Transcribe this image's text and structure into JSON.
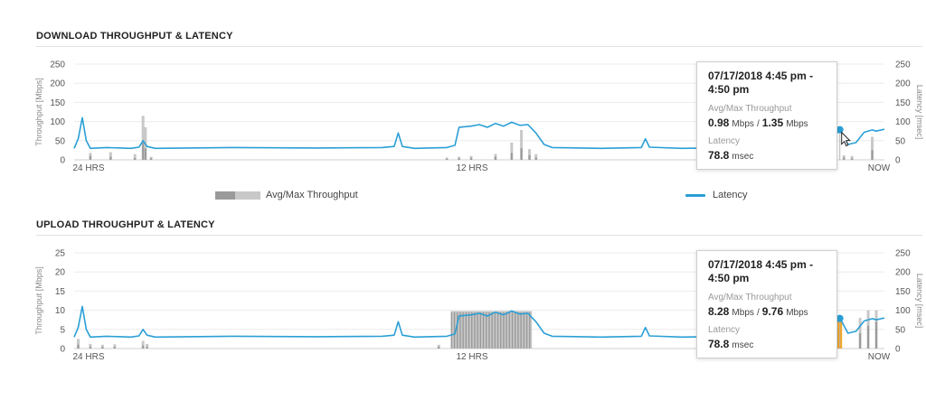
{
  "chart_data": [
    {
      "type": "bar",
      "title": "DOWNLOAD THROUGHPUT & LATENCY",
      "ylabel_left": "Throughput [Mbps]",
      "ylabel_right": "Latency [msec]",
      "ylim_left": [
        0,
        250
      ],
      "ylim_right": [
        0,
        250
      ],
      "yticks_left": [
        "250",
        "200",
        "150",
        "100",
        "50",
        "0"
      ],
      "yticks_right": [
        "250",
        "200",
        "150",
        "100",
        "50",
        "0"
      ],
      "xticks": [
        "24 HRS",
        "12 HRS",
        "NOW"
      ],
      "grid": true,
      "legend": [
        "Avg/Max Throughput",
        "Latency"
      ],
      "throughput_bars": [
        {
          "x": 0.02,
          "avg": 10,
          "max": 18
        },
        {
          "x": 0.045,
          "avg": 8,
          "max": 20
        },
        {
          "x": 0.075,
          "avg": 5,
          "max": 15
        },
        {
          "x": 0.085,
          "avg": 45,
          "max": 115
        },
        {
          "x": 0.088,
          "avg": 30,
          "max": 85
        },
        {
          "x": 0.095,
          "avg": 4,
          "max": 8
        },
        {
          "x": 0.46,
          "avg": 3,
          "max": 6
        },
        {
          "x": 0.475,
          "avg": 4,
          "max": 8
        },
        {
          "x": 0.49,
          "avg": 5,
          "max": 10
        },
        {
          "x": 0.52,
          "avg": 8,
          "max": 15
        },
        {
          "x": 0.54,
          "avg": 18,
          "max": 45
        },
        {
          "x": 0.552,
          "avg": 30,
          "max": 78
        },
        {
          "x": 0.562,
          "avg": 12,
          "max": 28
        },
        {
          "x": 0.57,
          "avg": 6,
          "max": 15
        },
        {
          "x": 0.935,
          "avg": 4,
          "max": 8
        },
        {
          "x": 0.95,
          "avg": 6,
          "max": 12
        },
        {
          "x": 0.96,
          "avg": 4,
          "max": 10
        },
        {
          "x": 0.985,
          "avg": 25,
          "max": 60
        }
      ],
      "latency": [
        [
          0,
          30
        ],
        [
          0.005,
          55
        ],
        [
          0.01,
          110
        ],
        [
          0.015,
          50
        ],
        [
          0.02,
          30
        ],
        [
          0.04,
          32
        ],
        [
          0.07,
          30
        ],
        [
          0.08,
          33
        ],
        [
          0.085,
          50
        ],
        [
          0.09,
          35
        ],
        [
          0.1,
          30
        ],
        [
          0.2,
          32
        ],
        [
          0.3,
          31
        ],
        [
          0.38,
          32
        ],
        [
          0.395,
          35
        ],
        [
          0.4,
          70
        ],
        [
          0.405,
          35
        ],
        [
          0.42,
          30
        ],
        [
          0.46,
          32
        ],
        [
          0.47,
          38
        ],
        [
          0.475,
          85
        ],
        [
          0.49,
          88
        ],
        [
          0.5,
          92
        ],
        [
          0.51,
          85
        ],
        [
          0.52,
          95
        ],
        [
          0.53,
          88
        ],
        [
          0.54,
          98
        ],
        [
          0.55,
          90
        ],
        [
          0.56,
          92
        ],
        [
          0.57,
          70
        ],
        [
          0.58,
          40
        ],
        [
          0.59,
          32
        ],
        [
          0.65,
          30
        ],
        [
          0.7,
          32
        ],
        [
          0.705,
          55
        ],
        [
          0.71,
          33
        ],
        [
          0.75,
          30
        ],
        [
          0.8,
          31
        ],
        [
          0.85,
          30
        ],
        [
          0.9,
          32
        ],
        [
          0.93,
          33
        ],
        [
          0.945,
          80
        ],
        [
          0.955,
          40
        ],
        [
          0.965,
          45
        ],
        [
          0.975,
          72
        ],
        [
          0.985,
          78
        ],
        [
          0.99,
          75
        ],
        [
          1,
          80
        ]
      ],
      "tooltip": {
        "date": "07/17/2018 4:45 pm - 4:50 pm",
        "throughput_label": "Avg/Max Throughput",
        "avg": "0.98",
        "max": "1.35",
        "unit": "Mbps",
        "separator": "/",
        "latency_label": "Latency",
        "latency": "78.8",
        "latency_unit": "msec"
      },
      "highlight": {
        "x": 0.945,
        "latency": 78.8
      },
      "colors": {
        "latency": "#2a9fd6",
        "avg": "#9a9a9a",
        "max": "#c8c8c8"
      }
    },
    {
      "type": "bar",
      "title": "UPLOAD THROUGHPUT & LATENCY",
      "ylabel_left": "Throughput [Mbps]",
      "ylabel_right": "Latency [msec]",
      "ylim_left": [
        0,
        25
      ],
      "ylim_right": [
        0,
        250
      ],
      "yticks_left": [
        "25",
        "20",
        "15",
        "10",
        "5",
        "0"
      ],
      "yticks_right": [
        "250",
        "200",
        "150",
        "100",
        "50",
        "0"
      ],
      "xticks": [
        "24 HRS",
        "12 HRS",
        "NOW"
      ],
      "grid": true,
      "throughput_band": {
        "x0": 0.465,
        "x1": 0.565,
        "avg": 9.5,
        "max": 9.8
      },
      "throughput_bars": [
        {
          "x": 0.005,
          "avg": 1,
          "max": 2.5
        },
        {
          "x": 0.02,
          "avg": 0.5,
          "max": 1.2
        },
        {
          "x": 0.035,
          "avg": 0.4,
          "max": 1
        },
        {
          "x": 0.05,
          "avg": 0.5,
          "max": 1.1
        },
        {
          "x": 0.085,
          "avg": 0.8,
          "max": 2
        },
        {
          "x": 0.09,
          "avg": 0.5,
          "max": 1.2
        },
        {
          "x": 0.45,
          "avg": 0.5,
          "max": 1
        },
        {
          "x": 0.942,
          "avg": 5,
          "max": 8.3
        },
        {
          "x": 0.97,
          "avg": 4,
          "max": 8
        },
        {
          "x": 0.98,
          "avg": 6,
          "max": 10
        },
        {
          "x": 0.99,
          "avg": 7,
          "max": 10
        }
      ],
      "latency": [
        [
          0,
          30
        ],
        [
          0.005,
          55
        ],
        [
          0.01,
          110
        ],
        [
          0.015,
          50
        ],
        [
          0.02,
          30
        ],
        [
          0.04,
          32
        ],
        [
          0.07,
          30
        ],
        [
          0.08,
          33
        ],
        [
          0.085,
          50
        ],
        [
          0.09,
          35
        ],
        [
          0.1,
          30
        ],
        [
          0.2,
          32
        ],
        [
          0.3,
          31
        ],
        [
          0.38,
          32
        ],
        [
          0.395,
          35
        ],
        [
          0.4,
          70
        ],
        [
          0.405,
          35
        ],
        [
          0.42,
          30
        ],
        [
          0.46,
          32
        ],
        [
          0.47,
          38
        ],
        [
          0.475,
          85
        ],
        [
          0.49,
          88
        ],
        [
          0.5,
          92
        ],
        [
          0.51,
          85
        ],
        [
          0.52,
          95
        ],
        [
          0.53,
          88
        ],
        [
          0.54,
          98
        ],
        [
          0.55,
          90
        ],
        [
          0.56,
          92
        ],
        [
          0.57,
          70
        ],
        [
          0.58,
          40
        ],
        [
          0.59,
          32
        ],
        [
          0.65,
          30
        ],
        [
          0.7,
          32
        ],
        [
          0.705,
          55
        ],
        [
          0.71,
          33
        ],
        [
          0.75,
          30
        ],
        [
          0.8,
          31
        ],
        [
          0.85,
          30
        ],
        [
          0.9,
          32
        ],
        [
          0.93,
          33
        ],
        [
          0.945,
          80
        ],
        [
          0.955,
          40
        ],
        [
          0.965,
          45
        ],
        [
          0.975,
          72
        ],
        [
          0.985,
          78
        ],
        [
          0.99,
          75
        ],
        [
          1,
          80
        ]
      ],
      "tooltip": {
        "date": "07/17/2018 4:45 pm - 4:50 pm",
        "throughput_label": "Avg/Max Throughput",
        "avg": "8.28",
        "max": "9.76",
        "unit": "Mbps",
        "separator": "/",
        "latency_label": "Latency",
        "latency": "78.8",
        "latency_unit": "msec"
      },
      "highlight": {
        "x": 0.945,
        "latency": 78.8,
        "bar_color": "#f5a623"
      },
      "colors": {
        "latency": "#2a9fd6",
        "avg": "#9a9a9a",
        "max": "#c8c8c8"
      }
    }
  ]
}
